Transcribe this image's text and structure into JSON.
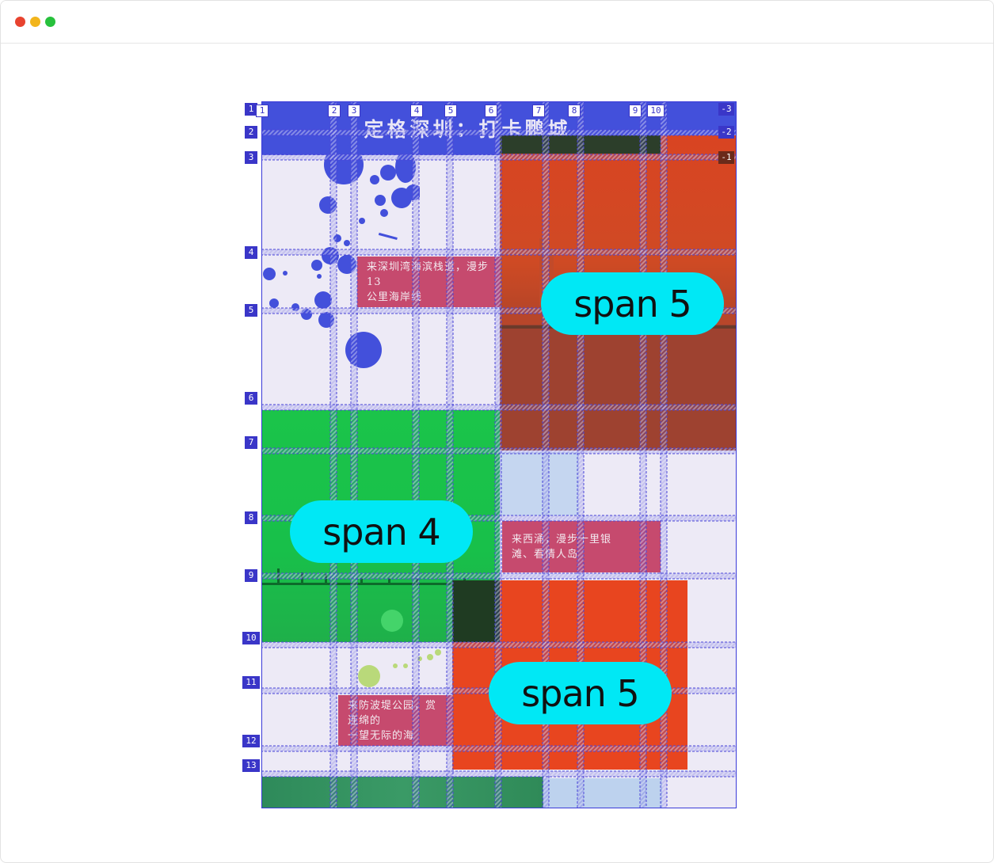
{
  "window": {
    "controls": [
      "close",
      "minimize",
      "maximize"
    ]
  },
  "page": {
    "title": "定格深圳：打卡鹏城"
  },
  "cards": [
    {
      "line1": "来深圳湾海滨栈道，漫步13",
      "line2": "公里海岸线"
    },
    {
      "line1": "来西涌，漫步十里银",
      "line2": "滩、看情人岛"
    },
    {
      "line1": "来防波堤公园，赏连绵的",
      "line2": "一望无际的海"
    }
  ],
  "span_labels": [
    "span 5",
    "span 4",
    "span 5"
  ],
  "grid": {
    "row_labels": [
      "1",
      "2",
      "3",
      "4",
      "5",
      "6",
      "7",
      "8",
      "9",
      "10",
      "11",
      "12",
      "13"
    ],
    "column_labels": [
      "1",
      "2",
      "3",
      "4",
      "5",
      "6",
      "7",
      "8",
      "9",
      "10"
    ],
    "negative_labels": [
      "-3",
      "-2",
      "-1"
    ]
  },
  "colors": {
    "grid_line": "#4a46d8",
    "header": "#4350db",
    "card": "#c64a6e",
    "pill": "#00e8f5",
    "photo_red": "#d94422",
    "photo_green": "#1bc44a"
  }
}
